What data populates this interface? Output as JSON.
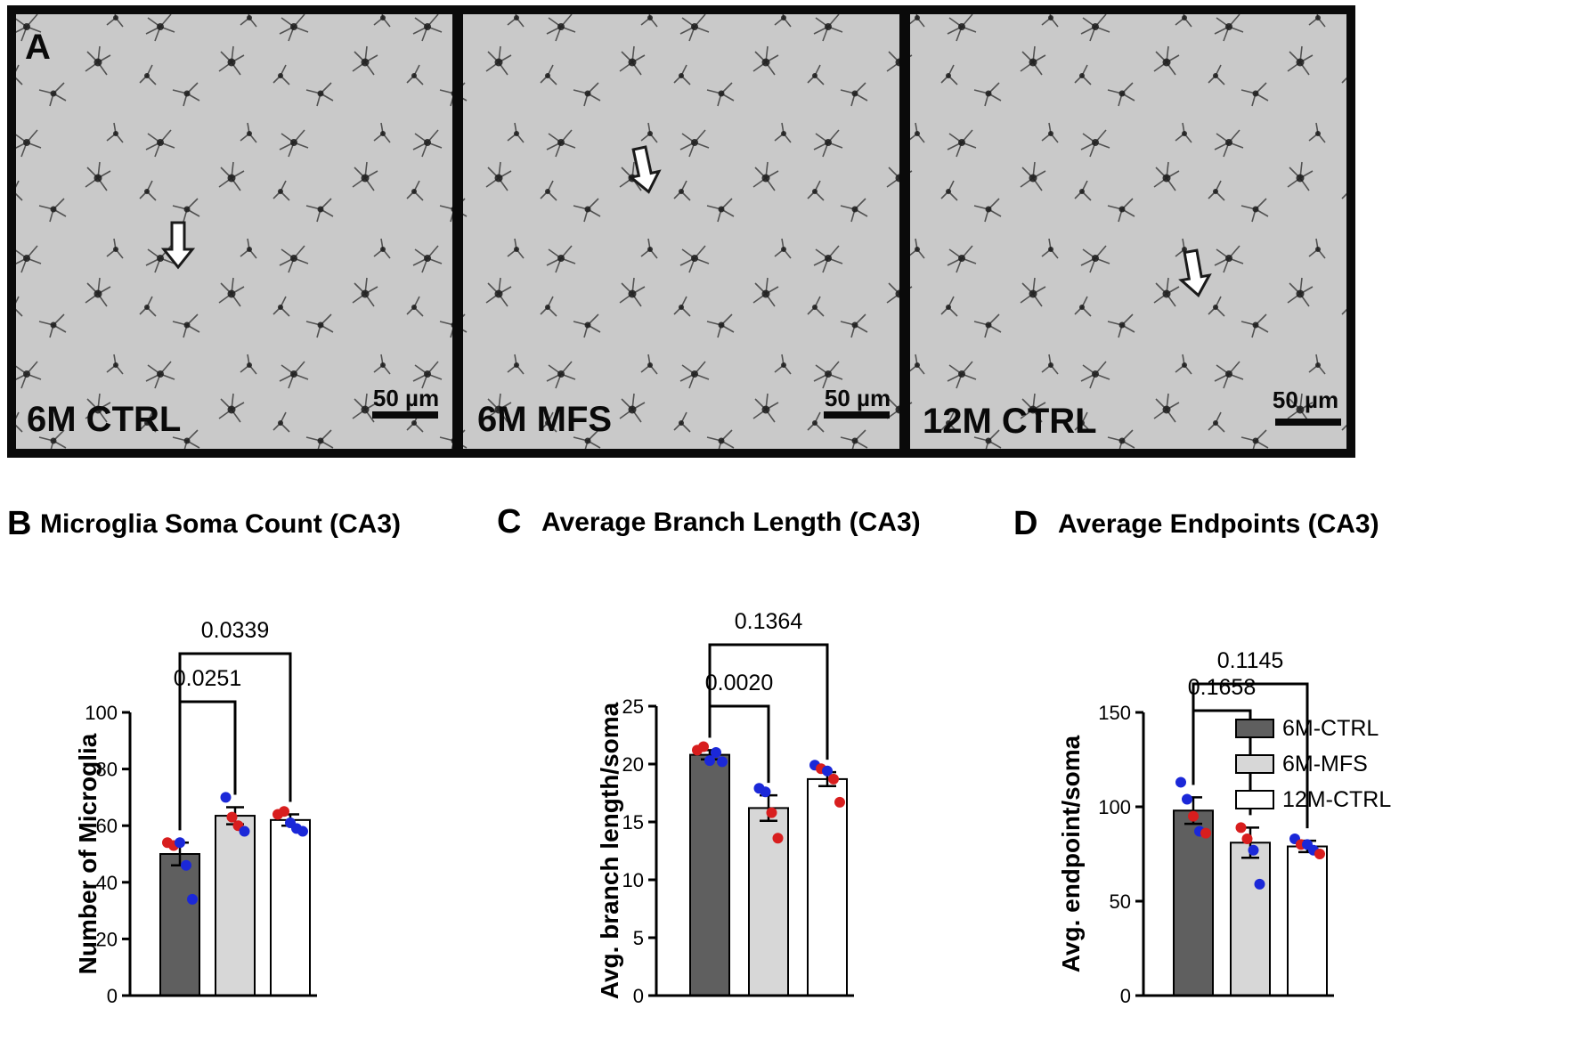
{
  "panel_a": {
    "letter": "A",
    "images": [
      {
        "label": "6M CTRL",
        "scalebar": "50 µm"
      },
      {
        "label": "6M MFS",
        "scalebar": "50 µm"
      },
      {
        "label": "12M CTRL",
        "scalebar": "50 µm"
      }
    ]
  },
  "colors": {
    "bar_fills": [
      "#5f5f5f",
      "#d7d7d7",
      "#ffffff"
    ],
    "dot_red": "#d81e1e",
    "dot_blue": "#1b28d8",
    "image_bg": "#c9c9c9",
    "frame": "#0a0a0a"
  },
  "legend": {
    "items": [
      {
        "label": "6M-CTRL",
        "color": "#5f5f5f"
      },
      {
        "label": "6M-MFS",
        "color": "#d7d7d7"
      },
      {
        "label": "12M-CTRL",
        "color": "#ffffff"
      }
    ]
  },
  "chart_data": [
    {
      "type": "bar",
      "panel": "B",
      "title": "Microglia Soma Count  (CA3)",
      "xlabel": "",
      "ylabel": "Number of Microglia",
      "categories": [
        "6M-CTRL",
        "6M-MFS",
        "12M-CTRL"
      ],
      "values": [
        50,
        63.5,
        62
      ],
      "sem": [
        4,
        3,
        2
      ],
      "ylim": [
        0,
        100
      ],
      "yticks": [
        0,
        20,
        40,
        60,
        80,
        100
      ],
      "points": [
        [
          {
            "v": 54,
            "c": "red"
          },
          {
            "v": 53,
            "c": "red"
          },
          {
            "v": 54,
            "c": "blue"
          },
          {
            "v": 46,
            "c": "blue"
          },
          {
            "v": 34,
            "c": "blue"
          }
        ],
        [
          {
            "v": 70,
            "c": "blue"
          },
          {
            "v": 63,
            "c": "red"
          },
          {
            "v": 60,
            "c": "red"
          },
          {
            "v": 58,
            "c": "blue"
          }
        ],
        [
          {
            "v": 64,
            "c": "red"
          },
          {
            "v": 65,
            "c": "red"
          },
          {
            "v": 61,
            "c": "blue"
          },
          {
            "v": 59,
            "c": "blue"
          },
          {
            "v": 58,
            "c": "blue"
          }
        ]
      ],
      "comparisons": [
        {
          "from": 0,
          "to": 1,
          "p": "0.0251"
        },
        {
          "from": 0,
          "to": 2,
          "p": "0.0339"
        }
      ]
    },
    {
      "type": "bar",
      "panel": "C",
      "title": "Average Branch Length (CA3)",
      "xlabel": "",
      "ylabel": "Avg. branch length/soma",
      "categories": [
        "6M-CTRL",
        "6M-MFS",
        "12M-CTRL"
      ],
      "values": [
        20.8,
        16.2,
        18.7
      ],
      "sem": [
        0.4,
        1.1,
        0.6
      ],
      "ylim": [
        0,
        25
      ],
      "yticks": [
        0,
        5,
        10,
        15,
        20,
        25
      ],
      "points": [
        [
          {
            "v": 21.2,
            "c": "red"
          },
          {
            "v": 21.5,
            "c": "red"
          },
          {
            "v": 20.3,
            "c": "blue"
          },
          {
            "v": 21.0,
            "c": "blue"
          },
          {
            "v": 20.2,
            "c": "blue"
          }
        ],
        [
          {
            "v": 17.9,
            "c": "blue"
          },
          {
            "v": 17.6,
            "c": "blue"
          },
          {
            "v": 15.8,
            "c": "red"
          },
          {
            "v": 13.6,
            "c": "red"
          }
        ],
        [
          {
            "v": 19.9,
            "c": "blue"
          },
          {
            "v": 19.6,
            "c": "red"
          },
          {
            "v": 19.4,
            "c": "blue"
          },
          {
            "v": 18.7,
            "c": "red"
          },
          {
            "v": 16.7,
            "c": "red"
          }
        ]
      ],
      "comparisons": [
        {
          "from": 0,
          "to": 1,
          "p": "0.0020"
        },
        {
          "from": 0,
          "to": 2,
          "p": "0.1364"
        }
      ]
    },
    {
      "type": "bar",
      "panel": "D",
      "title": "Average Endpoints (CA3)",
      "xlabel": "",
      "ylabel": "Avg. endpoint/soma",
      "categories": [
        "6M-CTRL",
        "6M-MFS",
        "12M-CTRL"
      ],
      "values": [
        98,
        81,
        79
      ],
      "sem": [
        7,
        8,
        3
      ],
      "ylim": [
        0,
        150
      ],
      "yticks": [
        0,
        50,
        100,
        150
      ],
      "points": [
        [
          {
            "v": 113,
            "c": "blue"
          },
          {
            "v": 104,
            "c": "blue"
          },
          {
            "v": 95,
            "c": "red"
          },
          {
            "v": 87,
            "c": "blue"
          },
          {
            "v": 86,
            "c": "red"
          }
        ],
        [
          {
            "v": 89,
            "c": "red"
          },
          {
            "v": 83,
            "c": "red"
          },
          {
            "v": 77,
            "c": "blue"
          },
          {
            "v": 59,
            "c": "blue"
          }
        ],
        [
          {
            "v": 83,
            "c": "blue"
          },
          {
            "v": 80,
            "c": "red"
          },
          {
            "v": 80,
            "c": "blue"
          },
          {
            "v": 77,
            "c": "blue"
          },
          {
            "v": 75,
            "c": "red"
          }
        ]
      ],
      "comparisons": [
        {
          "from": 0,
          "to": 1,
          "p": "0.1658"
        },
        {
          "from": 0,
          "to": 2,
          "p": "0.1145"
        }
      ]
    }
  ]
}
